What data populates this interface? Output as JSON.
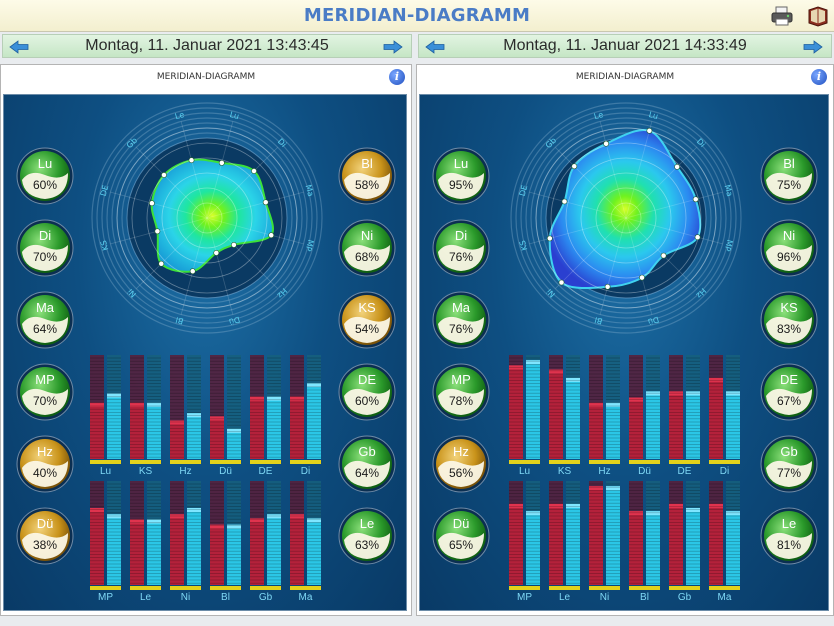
{
  "app": {
    "title": "MERIDIAN-DIAGRAMM"
  },
  "colors": {
    "green": "#2f9e2f",
    "gold": "#c79a1c",
    "bar_red": "#b3203a",
    "bar_cyan": "#29c6e6",
    "base_yellow": "#e3d21b"
  },
  "toolbar": {
    "printer_icon": "printer-icon",
    "book_icon": "book-icon"
  },
  "panels": [
    {
      "date": "Montag, 11. Januar 2021 13:43:45",
      "title": "MERIDIAN-DIAGRAMM",
      "radar": {
        "labels": [
          "Le",
          "Lu",
          "Di",
          "Ma",
          "MP",
          "Hz",
          "Dü",
          "Bl",
          "Ni",
          "KS",
          "DE",
          "Gb"
        ],
        "values": [
          63,
          60,
          70,
          64,
          70,
          40,
          38,
          58,
          68,
          54,
          60,
          64
        ]
      },
      "badges_left": [
        {
          "code": "Lu",
          "pct": "60%",
          "color": "green"
        },
        {
          "code": "Di",
          "pct": "70%",
          "color": "green"
        },
        {
          "code": "Ma",
          "pct": "64%",
          "color": "green"
        },
        {
          "code": "MP",
          "pct": "70%",
          "color": "green"
        },
        {
          "code": "Hz",
          "pct": "40%",
          "color": "gold"
        },
        {
          "code": "Dü",
          "pct": "38%",
          "color": "gold"
        }
      ],
      "badges_right": [
        {
          "code": "Bl",
          "pct": "58%",
          "color": "gold"
        },
        {
          "code": "Ni",
          "pct": "68%",
          "color": "green"
        },
        {
          "code": "KS",
          "pct": "54%",
          "color": "gold"
        },
        {
          "code": "DE",
          "pct": "60%",
          "color": "green"
        },
        {
          "code": "Gb",
          "pct": "64%",
          "color": "green"
        },
        {
          "code": "Le",
          "pct": "63%",
          "color": "green"
        }
      ],
      "bars_top": [
        {
          "label": "Lu",
          "red": 0.54,
          "cyan": 0.63
        },
        {
          "label": "KS",
          "red": 0.54,
          "cyan": 0.54
        },
        {
          "label": "Hz",
          "red": 0.37,
          "cyan": 0.44
        },
        {
          "label": "Dü",
          "red": 0.41,
          "cyan": 0.29
        },
        {
          "label": "DE",
          "red": 0.6,
          "cyan": 0.6
        },
        {
          "label": "Di",
          "red": 0.6,
          "cyan": 0.73
        }
      ],
      "bars_bottom": [
        {
          "label": "MP",
          "red": 0.74,
          "cyan": 0.68
        },
        {
          "label": "Le",
          "red": 0.63,
          "cyan": 0.63
        },
        {
          "label": "Ni",
          "red": 0.68,
          "cyan": 0.74
        },
        {
          "label": "Bl",
          "red": 0.58,
          "cyan": 0.58
        },
        {
          "label": "Gb",
          "red": 0.64,
          "cyan": 0.68
        },
        {
          "label": "Ma",
          "red": 0.68,
          "cyan": 0.64
        }
      ]
    },
    {
      "date": "Montag, 11. Januar 2021 14:33:49",
      "title": "MERIDIAN-DIAGRAMM",
      "radar": {
        "labels": [
          "Le",
          "Lu",
          "Di",
          "Ma",
          "MP",
          "Hz",
          "Dü",
          "Bl",
          "Ni",
          "KS",
          "DE",
          "Gb"
        ],
        "values": [
          81,
          95,
          76,
          76,
          78,
          56,
          65,
          75,
          96,
          83,
          67,
          77
        ]
      },
      "badges_left": [
        {
          "code": "Lu",
          "pct": "95%",
          "color": "green"
        },
        {
          "code": "Di",
          "pct": "76%",
          "color": "green"
        },
        {
          "code": "Ma",
          "pct": "76%",
          "color": "green"
        },
        {
          "code": "MP",
          "pct": "78%",
          "color": "green"
        },
        {
          "code": "Hz",
          "pct": "56%",
          "color": "gold"
        },
        {
          "code": "Dü",
          "pct": "65%",
          "color": "green"
        }
      ],
      "badges_right": [
        {
          "code": "Bl",
          "pct": "75%",
          "color": "green"
        },
        {
          "code": "Ni",
          "pct": "96%",
          "color": "green"
        },
        {
          "code": "KS",
          "pct": "83%",
          "color": "green"
        },
        {
          "code": "DE",
          "pct": "67%",
          "color": "green"
        },
        {
          "code": "Gb",
          "pct": "77%",
          "color": "green"
        },
        {
          "code": "Le",
          "pct": "81%",
          "color": "green"
        }
      ],
      "bars_top": [
        {
          "label": "Lu",
          "red": 0.9,
          "cyan": 0.95
        },
        {
          "label": "KS",
          "red": 0.86,
          "cyan": 0.78
        },
        {
          "label": "Hz",
          "red": 0.54,
          "cyan": 0.54
        },
        {
          "label": "Dü",
          "red": 0.59,
          "cyan": 0.65
        },
        {
          "label": "DE",
          "red": 0.65,
          "cyan": 0.65
        },
        {
          "label": "Di",
          "red": 0.78,
          "cyan": 0.65
        }
      ],
      "bars_bottom": [
        {
          "label": "MP",
          "red": 0.78,
          "cyan": 0.71
        },
        {
          "label": "Le",
          "red": 0.78,
          "cyan": 0.78
        },
        {
          "label": "Ni",
          "red": 0.95,
          "cyan": 0.95
        },
        {
          "label": "Bl",
          "red": 0.71,
          "cyan": 0.71
        },
        {
          "label": "Gb",
          "red": 0.78,
          "cyan": 0.74
        },
        {
          "label": "Ma",
          "red": 0.78,
          "cyan": 0.71
        }
      ]
    }
  ]
}
